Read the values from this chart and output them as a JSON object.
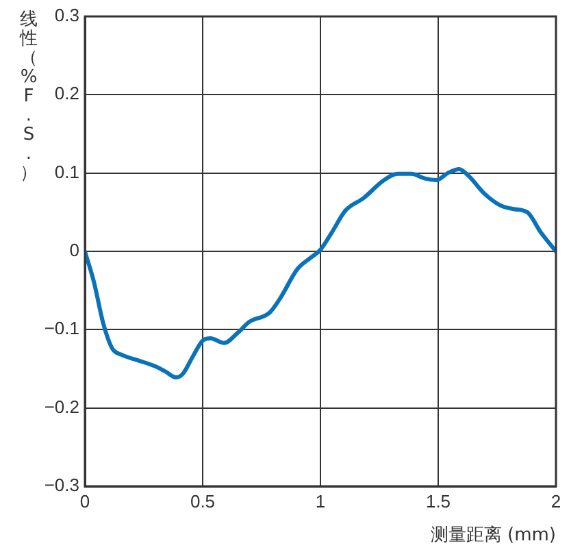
{
  "chart_data": {
    "type": "line",
    "xlabel": "测量距离 (mm)",
    "ylabel": "线性（%F.S.）",
    "x": [
      0,
      0.039,
      0.078,
      0.116,
      0.155,
      0.223,
      0.3,
      0.339,
      0.388,
      0.417,
      0.455,
      0.504,
      0.533,
      0.591,
      0.649,
      0.698,
      0.785,
      0.833,
      0.901,
      0.959,
      1.0,
      1.048,
      1.106,
      1.183,
      1.27,
      1.328,
      1.386,
      1.444,
      1.492,
      1.541,
      1.589,
      1.627,
      1.695,
      1.762,
      1.82,
      1.878,
      1.936,
      2.0
    ],
    "series": [
      {
        "color": "#0a72b8",
        "values": [
          0,
          -0.04,
          -0.092,
          -0.124,
          -0.132,
          -0.139,
          -0.147,
          -0.153,
          -0.161,
          -0.156,
          -0.136,
          -0.113,
          -0.111,
          -0.117,
          -0.104,
          -0.09,
          -0.078,
          -0.058,
          -0.023,
          -0.008,
          0.002,
          0.024,
          0.052,
          0.068,
          0.091,
          0.099,
          0.099,
          0.093,
          0.091,
          0.1,
          0.105,
          0.097,
          0.074,
          0.059,
          0.054,
          0.05,
          0.024,
          0
        ]
      }
    ],
    "xlim": [
      0,
      2
    ],
    "xticks": [
      0,
      0.5,
      1,
      1.5,
      2
    ],
    "ylim": [
      -0.3,
      0.3
    ],
    "yticks": [
      {
        "value": -0.3,
        "label": "−0.3"
      },
      {
        "value": -0.2,
        "label": "−0.2"
      },
      {
        "value": -0.1,
        "label": "−0.1"
      },
      0,
      0.1,
      0.2,
      0.3
    ],
    "grid": true,
    "marker": "none",
    "line_style": "solid"
  }
}
